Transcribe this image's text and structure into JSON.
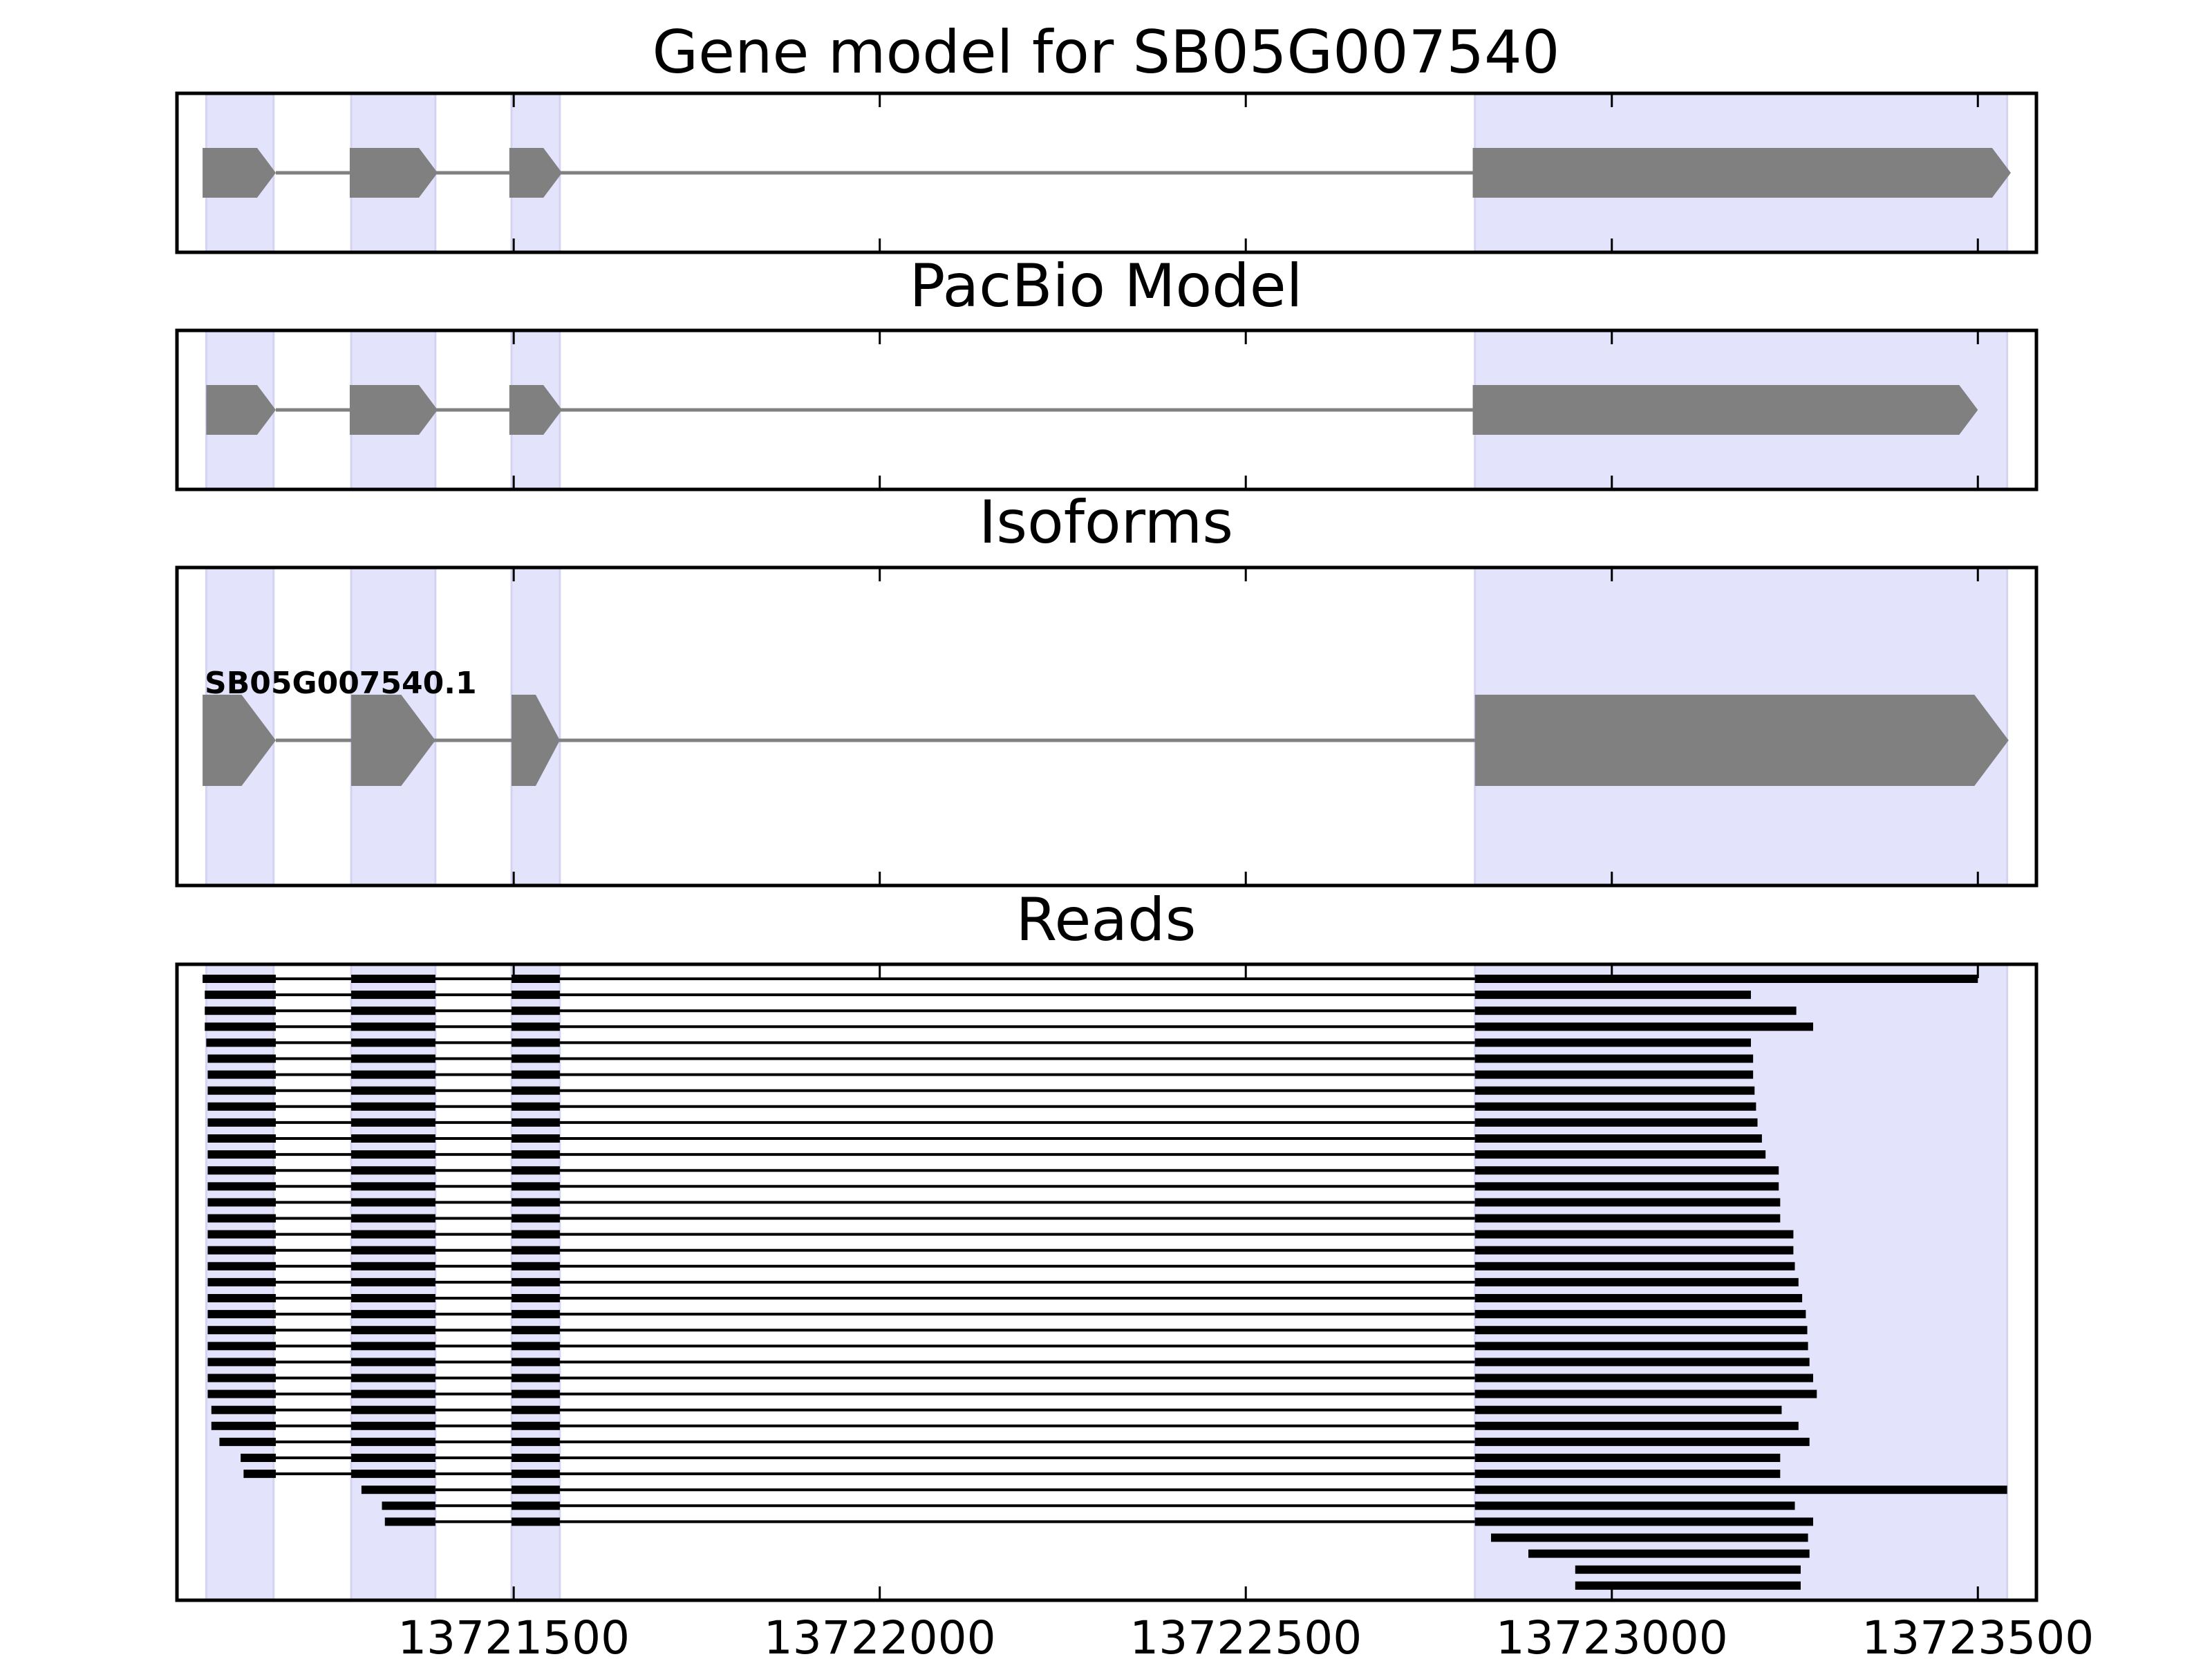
{
  "panels": [
    {
      "id": "gene",
      "title": "Gene model for SB05G007540"
    },
    {
      "id": "pacbio",
      "title": "PacBio Model"
    },
    {
      "id": "isoforms",
      "title": "Isoforms",
      "isoform_label": "SB05G007540.1"
    },
    {
      "id": "reads",
      "title": "Reads"
    }
  ],
  "colors": {
    "exon_fill": "#808080",
    "intron_line": "#808080",
    "highlight": "#e3e3fb",
    "read": "#000000",
    "axes": "#000000"
  },
  "chart_data": {
    "type": "gene-structure",
    "xlim": [
      13721040,
      13723580
    ],
    "xticks": [
      13721500,
      13722000,
      13722500,
      13723000,
      13723500
    ],
    "highlight_regions": [
      [
        13721080,
        13721172
      ],
      [
        13721278,
        13721393
      ],
      [
        13721497,
        13721563
      ],
      [
        13722813,
        13723540
      ]
    ],
    "gene_model": {
      "exons": [
        [
          13721075,
          13721175
        ],
        [
          13721276,
          13721396
        ],
        [
          13721494,
          13721566
        ],
        [
          13722810,
          13723545
        ]
      ]
    },
    "pacbio_model": {
      "exons": [
        [
          13721080,
          13721175
        ],
        [
          13721276,
          13721396
        ],
        [
          13721494,
          13721566
        ],
        [
          13722810,
          13723500
        ]
      ]
    },
    "isoforms": [
      {
        "name": "SB05G007540.1",
        "exons": [
          [
            13721075,
            13721175
          ],
          [
            13721278,
            13721393
          ],
          [
            13721497,
            13721563
          ],
          [
            13722813,
            13723542
          ]
        ]
      }
    ],
    "reads": [
      [
        13721075,
        13723500
      ],
      [
        13721078,
        13723190
      ],
      [
        13721078,
        13723252
      ],
      [
        13721078,
        13723275
      ],
      [
        13721080,
        13723190
      ],
      [
        13721082,
        13723193
      ],
      [
        13721082,
        13723193
      ],
      [
        13721082,
        13723195
      ],
      [
        13721082,
        13723197
      ],
      [
        13721082,
        13723199
      ],
      [
        13721082,
        13723205
      ],
      [
        13721082,
        13723210
      ],
      [
        13721082,
        13723228
      ],
      [
        13721082,
        13723228
      ],
      [
        13721082,
        13723230
      ],
      [
        13721082,
        13723230
      ],
      [
        13721082,
        13723248
      ],
      [
        13721082,
        13723248
      ],
      [
        13721082,
        13723250
      ],
      [
        13721082,
        13723255
      ],
      [
        13721082,
        13723260
      ],
      [
        13721082,
        13723265
      ],
      [
        13721082,
        13723267
      ],
      [
        13721082,
        13723268
      ],
      [
        13721082,
        13723270
      ],
      [
        13721082,
        13723275
      ],
      [
        13721082,
        13723280
      ],
      [
        13721087,
        13723232
      ],
      [
        13721087,
        13723255
      ],
      [
        13721098,
        13723270
      ],
      [
        13721127,
        13723230
      ],
      [
        13721131,
        13723230
      ],
      [
        13721292,
        13723540
      ],
      [
        13721320,
        13723250
      ],
      [
        13721324,
        13723275
      ],
      [
        13722835,
        13723268
      ],
      [
        13722886,
        13723270
      ],
      [
        13722950,
        13723258
      ],
      [
        13722950,
        13723258
      ]
    ]
  }
}
